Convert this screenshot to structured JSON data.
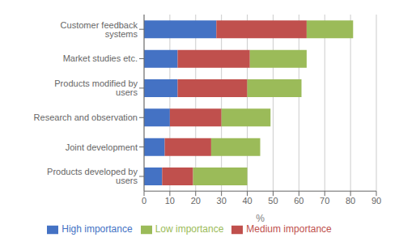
{
  "chart_data": {
    "type": "bar",
    "orientation": "horizontal",
    "stacked": true,
    "categories": [
      "Products developed by users",
      "Joint development",
      "Research and observation",
      "Products modified by users",
      "Market studies etc.",
      "Customer feedback systems"
    ],
    "series": [
      {
        "name": "High importance",
        "color": "#4472c4",
        "values": [
          7,
          8,
          10,
          13,
          13,
          28
        ]
      },
      {
        "name": "Medium importance",
        "color": "#c0504d",
        "values": [
          12,
          18,
          20,
          27,
          28,
          35
        ]
      },
      {
        "name": "Low importance",
        "color": "#9bbb59",
        "values": [
          21,
          19,
          19,
          21,
          22,
          18
        ]
      }
    ],
    "xlim": [
      0,
      90
    ],
    "xticks": [
      0,
      10,
      20,
      30,
      40,
      50,
      60,
      70,
      80,
      90
    ],
    "xlabel": "%",
    "grid": true,
    "legend": "bottom"
  }
}
